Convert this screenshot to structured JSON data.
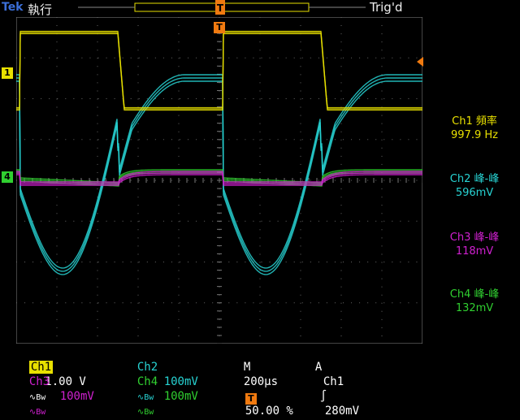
{
  "header": {
    "brand": "Tek",
    "run_state": "執行",
    "trigger_status": "Trig'd"
  },
  "screen": {
    "grid": true
  },
  "channels": {
    "ch1": {
      "label": "Ch1",
      "scale": "1.00 V",
      "color": "#e8e000",
      "marker": "1"
    },
    "ch2": {
      "label": "Ch2",
      "scale": "100mV",
      "color": "#27d3d3"
    },
    "ch3": {
      "label": "Ch3",
      "scale": "100mV",
      "color": "#d020d0"
    },
    "ch4": {
      "label": "Ch4",
      "scale": "100mV",
      "color": "#30d030",
      "marker": "4"
    }
  },
  "measurements": [
    {
      "name": "Ch1 頻率",
      "value": "997.9 Hz",
      "color": "#e8e000"
    },
    {
      "name": "Ch2 峰-峰",
      "value": "596mV",
      "color": "#27d3d3"
    },
    {
      "name": "Ch3 峰-峰",
      "value": "118mV",
      "color": "#d020d0"
    },
    {
      "name": "Ch4 峰-峰",
      "value": "132mV",
      "color": "#30d030"
    }
  ],
  "timebase": {
    "label": "M",
    "value": "200µs"
  },
  "trigger": {
    "mode": "A",
    "source": "Ch1",
    "slope": "∫",
    "level": "280mV",
    "marker": "T"
  },
  "trigger_position": "50.00 %",
  "bw_glyph": "∿Bw"
}
